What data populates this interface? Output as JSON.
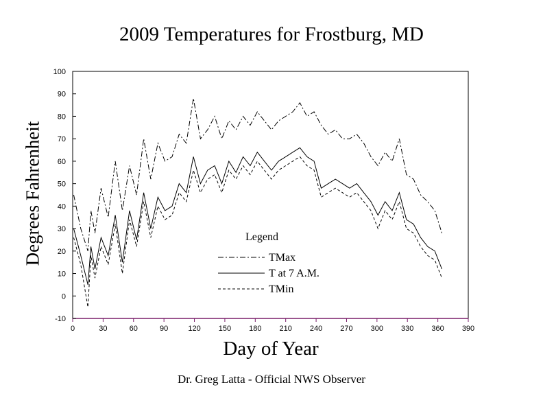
{
  "footer": "Dr. Greg Latta - Official NWS Observer",
  "chart_data": {
    "type": "line",
    "title": "2009 Temperatures for Frostburg, MD",
    "xlabel": "Day of Year",
    "ylabel": "Degrees Fahrenheit",
    "xlim": [
      0,
      390
    ],
    "ylim": [
      -10,
      100
    ],
    "x_ticks": [
      0,
      30,
      60,
      90,
      120,
      150,
      180,
      210,
      240,
      270,
      300,
      330,
      360,
      390
    ],
    "y_ticks": [
      -10,
      0,
      10,
      20,
      30,
      40,
      50,
      60,
      70,
      80,
      90,
      100
    ],
    "grid": false,
    "legend": {
      "title": "Legend",
      "placement": "center-left"
    },
    "x": [
      1,
      8,
      15,
      18,
      22,
      28,
      35,
      42,
      49,
      56,
      63,
      70,
      77,
      84,
      91,
      98,
      105,
      112,
      119,
      126,
      133,
      140,
      147,
      154,
      161,
      168,
      175,
      182,
      189,
      196,
      203,
      210,
      217,
      224,
      231,
      238,
      245,
      252,
      259,
      266,
      273,
      280,
      287,
      294,
      301,
      308,
      315,
      322,
      329,
      336,
      343,
      350,
      357,
      364
    ],
    "series": [
      {
        "name": "TMax",
        "style": "dash-dot",
        "values": [
          45,
          30,
          20,
          38,
          28,
          48,
          35,
          60,
          38,
          58,
          45,
          70,
          52,
          68,
          60,
          62,
          72,
          68,
          88,
          70,
          74,
          80,
          70,
          78,
          74,
          80,
          76,
          82,
          78,
          74,
          78,
          80,
          82,
          86,
          80,
          82,
          76,
          72,
          74,
          70,
          70,
          72,
          68,
          62,
          58,
          64,
          60,
          70,
          54,
          52,
          45,
          42,
          38,
          28
        ]
      },
      {
        "name": "T at 7 A.M.",
        "style": "solid",
        "values": [
          30,
          18,
          5,
          22,
          12,
          26,
          18,
          36,
          15,
          38,
          25,
          46,
          30,
          44,
          38,
          40,
          50,
          46,
          62,
          50,
          56,
          58,
          50,
          60,
          55,
          62,
          58,
          64,
          60,
          56,
          60,
          62,
          64,
          66,
          62,
          60,
          48,
          50,
          52,
          50,
          48,
          50,
          46,
          42,
          36,
          42,
          38,
          46,
          34,
          32,
          26,
          22,
          20,
          12
        ]
      },
      {
        "name": "TMin",
        "style": "dashed",
        "values": [
          26,
          14,
          -5,
          18,
          8,
          22,
          14,
          32,
          10,
          34,
          22,
          42,
          26,
          40,
          34,
          36,
          46,
          42,
          56,
          46,
          52,
          54,
          46,
          56,
          52,
          58,
          54,
          60,
          56,
          52,
          56,
          58,
          60,
          62,
          58,
          56,
          44,
          46,
          48,
          46,
          44,
          46,
          42,
          38,
          30,
          38,
          34,
          42,
          30,
          28,
          22,
          18,
          16,
          8
        ]
      }
    ]
  }
}
